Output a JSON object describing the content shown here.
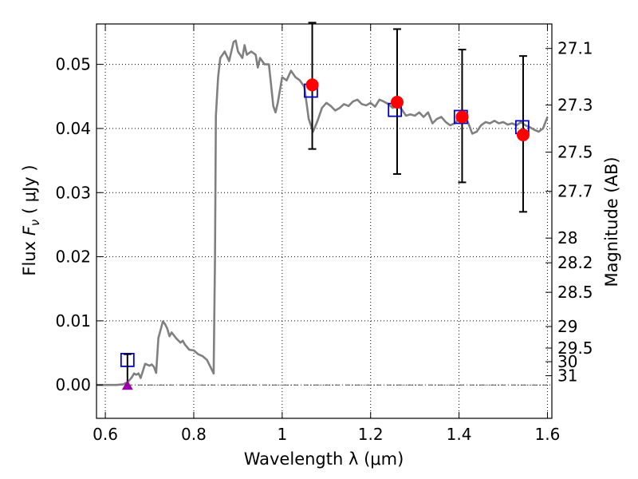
{
  "chart_data": {
    "type": "line",
    "xlabel": "Wavelength  λ (μm)",
    "ylabel_prefix": "Flux  ",
    "ylabel_var": "F",
    "ylabel_sub": "ν",
    "ylabel_suffix": "  ( μJy )",
    "y2label": "Magnitude (AB)",
    "xlim": [
      0.58,
      1.61
    ],
    "ylim": [
      -0.0052,
      0.0563
    ],
    "x_ticks": [
      0.6,
      0.8,
      1.0,
      1.2,
      1.4,
      1.6
    ],
    "x_tick_labels": [
      "0.6",
      "0.8",
      "1",
      "1.2",
      "1.4",
      "1.6"
    ],
    "y_ticks": [
      0.0,
      0.01,
      0.02,
      0.03,
      0.04,
      0.05
    ],
    "y_tick_labels": [
      "0.00",
      "0.01",
      "0.02",
      "0.03",
      "0.04",
      "0.05"
    ],
    "mag_ticks": [
      "27.1",
      "27.3",
      "27.5",
      "27.7",
      "28",
      "28.2",
      "28.5",
      "29",
      "29.5",
      "30",
      "31"
    ],
    "zero_line": 0.0,
    "colors": {
      "model": "#808080",
      "observed": "#ff0000",
      "synthetic": "#0000cc",
      "upper_limit": "#9900aa",
      "errorbar": "#000000"
    },
    "series": [
      {
        "kind": "model",
        "x": [
          0.58,
          0.6,
          0.61,
          0.625,
          0.64,
          0.65,
          0.655,
          0.66,
          0.665,
          0.67,
          0.675,
          0.68,
          0.69,
          0.7,
          0.705,
          0.71,
          0.715,
          0.72,
          0.73,
          0.735,
          0.74,
          0.745,
          0.75,
          0.76,
          0.77,
          0.775,
          0.78,
          0.79,
          0.8,
          0.81,
          0.82,
          0.83,
          0.84,
          0.845,
          0.848,
          0.85,
          0.855,
          0.86,
          0.87,
          0.88,
          0.885,
          0.89,
          0.895,
          0.9,
          0.91,
          0.915,
          0.92,
          0.93,
          0.94,
          0.945,
          0.95,
          0.96,
          0.97,
          0.98,
          0.985,
          0.99,
          1.0,
          1.01,
          1.02,
          1.03,
          1.04,
          1.05,
          1.06,
          1.07,
          1.08,
          1.09,
          1.1,
          1.11,
          1.12,
          1.13,
          1.14,
          1.15,
          1.16,
          1.17,
          1.18,
          1.19,
          1.2,
          1.21,
          1.22,
          1.23,
          1.24,
          1.25,
          1.26,
          1.27,
          1.28,
          1.29,
          1.3,
          1.31,
          1.32,
          1.33,
          1.34,
          1.35,
          1.36,
          1.37,
          1.38,
          1.39,
          1.4,
          1.41,
          1.42,
          1.43,
          1.44,
          1.45,
          1.46,
          1.47,
          1.48,
          1.49,
          1.5,
          1.51,
          1.52,
          1.53,
          1.54,
          1.55,
          1.56,
          1.57,
          1.58,
          1.59,
          1.6
        ],
        "y": [
          0.0,
          0.0,
          0.0,
          0.0,
          0.0001,
          0.0004,
          0.0008,
          0.0012,
          0.0018,
          0.0016,
          0.0018,
          0.0011,
          0.0033,
          0.003,
          0.0032,
          0.0028,
          0.0019,
          0.0073,
          0.0099,
          0.0095,
          0.0088,
          0.0076,
          0.0082,
          0.0073,
          0.0066,
          0.0069,
          0.0063,
          0.0055,
          0.0054,
          0.0048,
          0.0045,
          0.0039,
          0.0025,
          0.0018,
          0.02,
          0.042,
          0.048,
          0.051,
          0.052,
          0.0505,
          0.052,
          0.0535,
          0.0537,
          0.052,
          0.051,
          0.053,
          0.0515,
          0.052,
          0.0515,
          0.0495,
          0.051,
          0.05,
          0.05,
          0.0435,
          0.0425,
          0.044,
          0.048,
          0.0475,
          0.049,
          0.048,
          0.0475,
          0.0465,
          0.0415,
          0.0395,
          0.0412,
          0.0432,
          0.044,
          0.0435,
          0.0428,
          0.0432,
          0.0438,
          0.0435,
          0.0442,
          0.0445,
          0.0438,
          0.0436,
          0.044,
          0.0434,
          0.0445,
          0.0442,
          0.0438,
          0.0432,
          0.0435,
          0.043,
          0.042,
          0.0422,
          0.042,
          0.0425,
          0.0418,
          0.0425,
          0.0408,
          0.0415,
          0.0418,
          0.041,
          0.0405,
          0.0408,
          0.0415,
          0.042,
          0.041,
          0.0392,
          0.0395,
          0.0405,
          0.041,
          0.0408,
          0.0412,
          0.0408,
          0.041,
          0.0406,
          0.0408,
          0.0405,
          0.041,
          0.0405,
          0.0402,
          0.0398,
          0.0395,
          0.04,
          0.0418
        ]
      },
      {
        "kind": "observed",
        "x": [
          1.068,
          1.26,
          1.407,
          1.545
        ],
        "y": [
          0.0468,
          0.0441,
          0.0418,
          0.039
        ],
        "err_lo": [
          0.0368,
          0.0329,
          0.0316,
          0.027
        ],
        "err_hi": [
          0.0565,
          0.0555,
          0.0523,
          0.0513
        ]
      },
      {
        "kind": "synthetic",
        "x": [
          0.65,
          1.065,
          1.255,
          1.404,
          1.543
        ],
        "y": [
          0.0039,
          0.0459,
          0.0429,
          0.0418,
          0.0402
        ]
      },
      {
        "kind": "upper_limit",
        "x": [
          0.65
        ],
        "y": [
          0.0
        ],
        "err_hi": [
          0.0048
        ]
      }
    ],
    "grid": true,
    "legend": "none"
  }
}
